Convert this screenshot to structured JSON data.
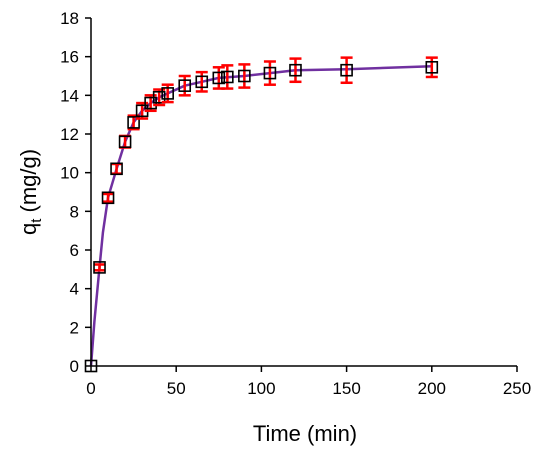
{
  "chart_data": {
    "type": "scatter",
    "xlabel": "Time (min)",
    "ylabel_main": "q",
    "ylabel_sub": "t",
    "ylabel_unit": " (mg/g)",
    "xlim": [
      0,
      250
    ],
    "ylim": [
      0,
      18
    ],
    "x_ticks": [
      "0",
      "50",
      "100",
      "150",
      "200",
      "250"
    ],
    "y_ticks": [
      "0",
      "2",
      "4",
      "6",
      "8",
      "10",
      "12",
      "14",
      "16",
      "18"
    ],
    "grid": false,
    "legend": "none",
    "series": [
      {
        "x": [
          0,
          5,
          10,
          15,
          20,
          25,
          30,
          35,
          40,
          45,
          55,
          65,
          75,
          80,
          90,
          105,
          120,
          150,
          200
        ],
        "y": [
          0,
          5.1,
          8.7,
          10.2,
          11.6,
          12.6,
          13.2,
          13.6,
          13.9,
          14.1,
          14.5,
          14.7,
          14.9,
          14.95,
          15.0,
          15.15,
          15.3,
          15.3,
          15.45
        ],
        "yerr": [
          0.05,
          0.15,
          0.2,
          0.25,
          0.3,
          0.35,
          0.4,
          0.4,
          0.4,
          0.45,
          0.5,
          0.5,
          0.55,
          0.6,
          0.6,
          0.6,
          0.6,
          0.65,
          0.5
        ],
        "fit_curve": [
          [
            0,
            0
          ],
          [
            2,
            2.3
          ],
          [
            5,
            5.1
          ],
          [
            7,
            6.9
          ],
          [
            10,
            8.7
          ],
          [
            15,
            10.2
          ],
          [
            20,
            11.6
          ],
          [
            25,
            12.6
          ],
          [
            30,
            13.2
          ],
          [
            35,
            13.6
          ],
          [
            40,
            13.9
          ],
          [
            45,
            14.1
          ],
          [
            55,
            14.5
          ],
          [
            65,
            14.7
          ],
          [
            75,
            14.9
          ],
          [
            90,
            15.0
          ],
          [
            105,
            15.15
          ],
          [
            120,
            15.3
          ],
          [
            150,
            15.35
          ],
          [
            200,
            15.5
          ]
        ]
      }
    ],
    "colors": {
      "marker": "#000000",
      "error_bar": "#ff0000",
      "fit_line": "#7030a0",
      "axis": "#000000"
    }
  }
}
